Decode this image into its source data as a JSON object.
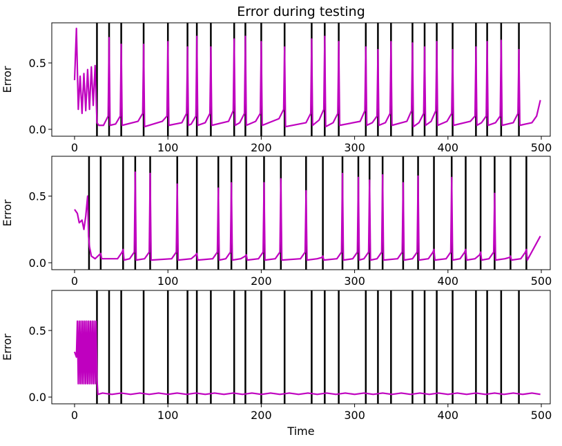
{
  "chart_data": [
    {
      "type": "line",
      "title": "Error during testing",
      "ylabel": "Error",
      "color": "#bf00bf",
      "xlim": [
        -24.4,
        509.6
      ],
      "ylim": [
        -0.052,
        0.802
      ],
      "xticks": [
        0,
        100,
        200,
        300,
        400,
        500
      ],
      "yticks": [
        {
          "value": 0,
          "label": "0.0"
        },
        {
          "value": 0.5,
          "label": "0.5"
        }
      ],
      "vlines": [
        24,
        37,
        50,
        74,
        100,
        121,
        131,
        146,
        171,
        183,
        200,
        225,
        254,
        268,
        283,
        312,
        325,
        339,
        362,
        375,
        388,
        405,
        430,
        442,
        457,
        476
      ],
      "x": [
        0,
        2,
        4,
        6,
        8,
        10,
        12,
        14,
        16,
        18,
        20,
        22,
        24,
        26,
        31,
        36,
        37,
        38,
        44,
        49,
        50,
        51,
        68,
        73,
        74,
        75,
        94,
        99,
        100,
        101,
        115,
        120,
        121,
        122,
        125,
        130,
        131,
        132,
        140,
        145,
        146,
        147,
        165,
        170,
        171,
        172,
        177,
        182,
        183,
        184,
        194,
        199,
        200,
        201,
        219,
        224,
        225,
        226,
        248,
        253,
        254,
        255,
        262,
        267,
        268,
        269,
        277,
        282,
        283,
        284,
        306,
        311,
        312,
        313,
        319,
        324,
        325,
        326,
        333,
        338,
        339,
        340,
        356,
        361,
        362,
        363,
        369,
        374,
        375,
        376,
        382,
        387,
        388,
        389,
        399,
        404,
        405,
        406,
        424,
        429,
        430,
        431,
        436,
        441,
        442,
        443,
        451,
        456,
        457,
        458,
        470,
        475,
        476,
        477,
        490,
        495,
        499
      ],
      "values": [
        0.37,
        0.76,
        0.15,
        0.4,
        0.12,
        0.42,
        0.14,
        0.45,
        0.15,
        0.47,
        0.18,
        0.48,
        0.05,
        0.03,
        0.03,
        0.1,
        0.69,
        0.03,
        0.04,
        0.1,
        0.64,
        0.03,
        0.06,
        0.12,
        0.64,
        0.02,
        0.06,
        0.1,
        0.66,
        0.03,
        0.05,
        0.12,
        0.62,
        0.03,
        0.04,
        0.1,
        0.7,
        0.03,
        0.05,
        0.12,
        0.62,
        0.03,
        0.06,
        0.14,
        0.68,
        0.03,
        0.05,
        0.12,
        0.7,
        0.03,
        0.06,
        0.12,
        0.66,
        0.03,
        0.08,
        0.15,
        0.62,
        0.02,
        0.05,
        0.12,
        0.68,
        0.03,
        0.07,
        0.15,
        0.7,
        0.02,
        0.05,
        0.12,
        0.66,
        0.03,
        0.06,
        0.14,
        0.62,
        0.03,
        0.05,
        0.1,
        0.6,
        0.03,
        0.05,
        0.12,
        0.66,
        0.03,
        0.06,
        0.14,
        0.65,
        0.02,
        0.05,
        0.12,
        0.62,
        0.03,
        0.06,
        0.14,
        0.66,
        0.03,
        0.06,
        0.12,
        0.6,
        0.03,
        0.06,
        0.1,
        0.62,
        0.03,
        0.05,
        0.1,
        0.66,
        0.03,
        0.05,
        0.1,
        0.67,
        0.03,
        0.05,
        0.12,
        0.6,
        0.03,
        0.05,
        0.1,
        0.22
      ]
    },
    {
      "type": "line",
      "ylabel": "Error",
      "color": "#bf00bf",
      "xlim": [
        -24.4,
        509.6
      ],
      "ylim": [
        -0.052,
        0.799
      ],
      "xticks": [
        0,
        100,
        200,
        300,
        400,
        500
      ],
      "yticks": [
        {
          "value": 0,
          "label": "0.0"
        },
        {
          "value": 0.5,
          "label": "0.5"
        }
      ],
      "vlines": [
        15.5,
        28,
        52,
        65,
        81,
        110,
        131,
        154,
        168,
        184,
        203,
        221,
        248,
        266,
        287,
        304,
        316,
        330,
        352,
        368,
        385,
        404,
        419,
        435,
        450,
        467,
        484
      ],
      "x": [
        0,
        3,
        5,
        8,
        10,
        12,
        14,
        15,
        16,
        18,
        22,
        28,
        29,
        46,
        51,
        52,
        53,
        59,
        64,
        65,
        66,
        75,
        80,
        81,
        82,
        104,
        109,
        110,
        111,
        125,
        130,
        131,
        132,
        148,
        153,
        154,
        155,
        162,
        167,
        168,
        169,
        178,
        183,
        184,
        185,
        197,
        202,
        203,
        204,
        215,
        220,
        221,
        222,
        242,
        247,
        248,
        249,
        260,
        265,
        266,
        267,
        281,
        286,
        287,
        288,
        298,
        303,
        304,
        305,
        310,
        315,
        316,
        317,
        324,
        329,
        330,
        331,
        346,
        351,
        352,
        353,
        362,
        367,
        368,
        369,
        379,
        384,
        385,
        386,
        398,
        403,
        404,
        405,
        413,
        418,
        419,
        420,
        429,
        434,
        435,
        436,
        444,
        449,
        450,
        451,
        461,
        466,
        467,
        468,
        478,
        483,
        484,
        485,
        499
      ],
      "values": [
        0.4,
        0.37,
        0.3,
        0.32,
        0.25,
        0.35,
        0.5,
        0.2,
        0.12,
        0.05,
        0.03,
        0.07,
        0.03,
        0.03,
        0.08,
        0.1,
        0.02,
        0.03,
        0.08,
        0.68,
        0.02,
        0.03,
        0.08,
        0.67,
        0.02,
        0.03,
        0.08,
        0.59,
        0.02,
        0.03,
        0.06,
        0.07,
        0.02,
        0.03,
        0.08,
        0.56,
        0.02,
        0.03,
        0.08,
        0.6,
        0.02,
        0.03,
        0.05,
        0.06,
        0.02,
        0.03,
        0.08,
        0.6,
        0.02,
        0.03,
        0.08,
        0.63,
        0.02,
        0.03,
        0.08,
        0.54,
        0.02,
        0.03,
        0.04,
        0.05,
        0.02,
        0.03,
        0.08,
        0.67,
        0.02,
        0.03,
        0.08,
        0.64,
        0.02,
        0.03,
        0.08,
        0.62,
        0.02,
        0.03,
        0.08,
        0.66,
        0.02,
        0.03,
        0.08,
        0.6,
        0.02,
        0.03,
        0.08,
        0.65,
        0.02,
        0.03,
        0.08,
        0.1,
        0.02,
        0.03,
        0.08,
        0.64,
        0.02,
        0.03,
        0.08,
        0.1,
        0.02,
        0.03,
        0.06,
        0.08,
        0.02,
        0.03,
        0.08,
        0.52,
        0.02,
        0.03,
        0.04,
        0.05,
        0.02,
        0.03,
        0.08,
        0.1,
        0.02,
        0.2
      ]
    },
    {
      "type": "line",
      "ylabel": "Error",
      "xlabel": "Time",
      "color": "#bf00bf",
      "xlim": [
        -24.4,
        509.6
      ],
      "ylim": [
        -0.051,
        0.801
      ],
      "xticks": [
        0,
        100,
        200,
        300,
        400,
        500
      ],
      "yticks": [
        {
          "value": 0,
          "label": "0.0"
        },
        {
          "value": 0.5,
          "label": "0.5"
        }
      ],
      "vlines": [
        24,
        37,
        50,
        74,
        100,
        121,
        131,
        146,
        171,
        183,
        200,
        225,
        254,
        268,
        283,
        312,
        325,
        339,
        362,
        375,
        388,
        405,
        430,
        442,
        457,
        476
      ],
      "x": [
        0,
        2,
        3,
        4,
        5,
        6,
        7,
        8,
        9,
        10,
        11,
        12,
        13,
        14,
        15,
        16,
        17,
        18,
        19,
        20,
        21,
        22,
        23,
        24,
        25,
        30,
        40,
        50,
        60,
        70,
        80,
        90,
        100,
        110,
        120,
        130,
        140,
        150,
        160,
        170,
        180,
        190,
        200,
        210,
        220,
        230,
        240,
        250,
        260,
        270,
        280,
        290,
        300,
        310,
        320,
        330,
        340,
        350,
        360,
        370,
        380,
        390,
        400,
        410,
        420,
        430,
        440,
        450,
        460,
        470,
        480,
        490,
        499
      ],
      "values": [
        0.34,
        0.3,
        0.57,
        0.1,
        0.57,
        0.1,
        0.57,
        0.1,
        0.57,
        0.1,
        0.57,
        0.1,
        0.57,
        0.1,
        0.57,
        0.1,
        0.57,
        0.1,
        0.57,
        0.1,
        0.57,
        0.1,
        0.57,
        0.14,
        0.02,
        0.03,
        0.02,
        0.03,
        0.02,
        0.03,
        0.02,
        0.03,
        0.02,
        0.03,
        0.02,
        0.03,
        0.02,
        0.03,
        0.02,
        0.03,
        0.02,
        0.03,
        0.02,
        0.03,
        0.02,
        0.03,
        0.02,
        0.03,
        0.02,
        0.03,
        0.02,
        0.03,
        0.02,
        0.03,
        0.02,
        0.03,
        0.02,
        0.03,
        0.02,
        0.03,
        0.02,
        0.03,
        0.02,
        0.03,
        0.02,
        0.03,
        0.02,
        0.03,
        0.02,
        0.03,
        0.02,
        0.03,
        0.02
      ]
    }
  ]
}
